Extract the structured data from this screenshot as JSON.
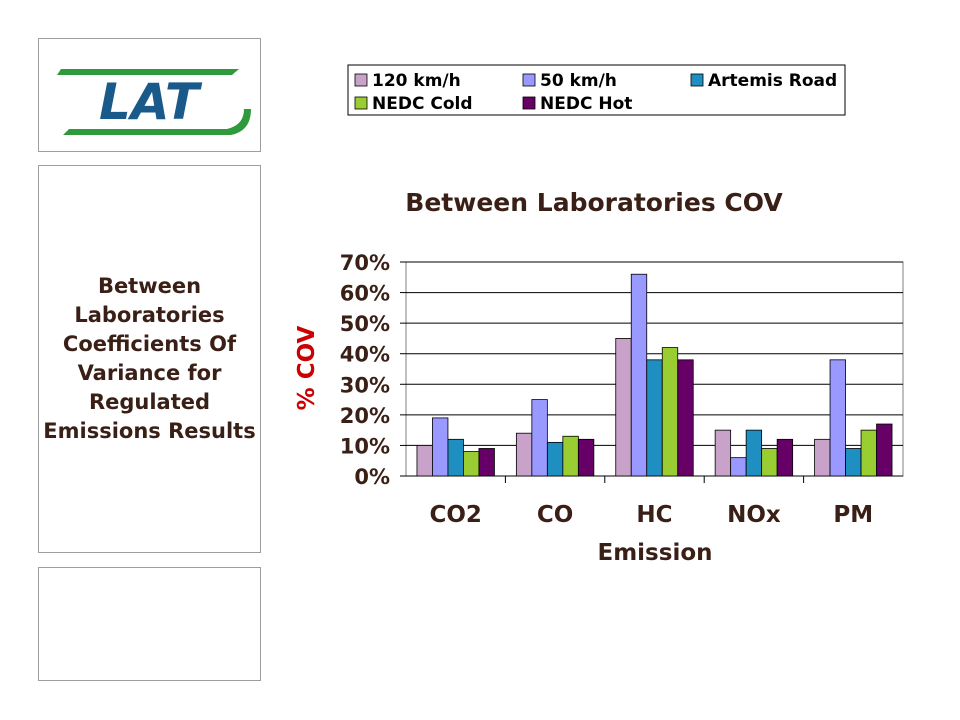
{
  "logo": {
    "text": "LAT",
    "icon": "lat-logo"
  },
  "side_panel": {
    "text": "Between Laboratories Coefficients Of Variance for Regulated Emissions Results"
  },
  "colors": {
    "series": [
      "#c8a2c8",
      "#9999ff",
      "#1f8fc1",
      "#9acd32",
      "#660066"
    ],
    "title": "#3a1f16",
    "axis": "#000000",
    "grid": "#000000"
  },
  "chart_data": {
    "type": "bar",
    "title": "Between Laboratories COV",
    "xlabel": "Emission",
    "ylabel": "% COV",
    "categories": [
      "CO2",
      "CO",
      "HC",
      "NOx",
      "PM"
    ],
    "ylim": [
      0,
      0.7
    ],
    "yticks": [
      "0%",
      "10%",
      "20%",
      "30%",
      "40%",
      "50%",
      "60%",
      "70%"
    ],
    "grid": true,
    "legend_position": "top",
    "series": [
      {
        "name": "120 km/h",
        "values": [
          0.1,
          0.14,
          0.45,
          0.15,
          0.12
        ]
      },
      {
        "name": "50 km/h",
        "values": [
          0.19,
          0.25,
          0.66,
          0.06,
          0.38
        ]
      },
      {
        "name": "Artemis Road",
        "values": [
          0.12,
          0.11,
          0.38,
          0.15,
          0.09
        ]
      },
      {
        "name": "NEDC Cold",
        "values": [
          0.08,
          0.13,
          0.42,
          0.09,
          0.15
        ]
      },
      {
        "name": "NEDC Hot",
        "values": [
          0.09,
          0.12,
          0.38,
          0.12,
          0.17
        ]
      }
    ]
  }
}
